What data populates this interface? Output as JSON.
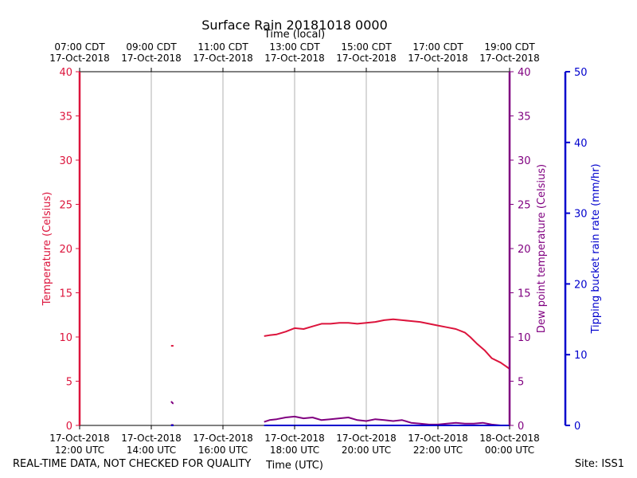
{
  "chart_data": {
    "type": "line",
    "title": "Surface Rain 20181018 0000",
    "top_axis_label": "Time (local)",
    "xlabel": "Time (UTC)",
    "ylabel_left": "Temperature (Celsius)",
    "ylabel_right": "Dew point temperature (Celsius)",
    "ylabel_far_right": "Tipping bucket rain rate (mm/hr)",
    "xlim_utc_hours": [
      12,
      24
    ],
    "ylim_temperature": [
      0,
      40
    ],
    "ylim_dewpoint": [
      0,
      40
    ],
    "ylim_rain": [
      0,
      50
    ],
    "temp_ticks": [
      "0",
      "5",
      "10",
      "15",
      "20",
      "25",
      "30",
      "35",
      "40"
    ],
    "rain_ticks": [
      "0",
      "10",
      "20",
      "30",
      "40",
      "50"
    ],
    "grid": true,
    "colors": {
      "temperature": "#dc143c",
      "dewpoint": "#800080",
      "rain": "#0000cd",
      "grid": "#b0b0b0"
    },
    "x_ticks_utc": [
      {
        "hour": 12,
        "line1": "17-Oct-2018",
        "line2": "12:00 UTC"
      },
      {
        "hour": 14,
        "line1": "17-Oct-2018",
        "line2": "14:00 UTC"
      },
      {
        "hour": 16,
        "line1": "17-Oct-2018",
        "line2": "16:00 UTC"
      },
      {
        "hour": 18,
        "line1": "17-Oct-2018",
        "line2": "18:00 UTC"
      },
      {
        "hour": 20,
        "line1": "17-Oct-2018",
        "line2": "20:00 UTC"
      },
      {
        "hour": 22,
        "line1": "17-Oct-2018",
        "line2": "22:00 UTC"
      },
      {
        "hour": 24,
        "line1": "18-Oct-2018",
        "line2": "00:00 UTC"
      }
    ],
    "x_ticks_local": [
      {
        "hour": 12,
        "line1": "07:00 CDT",
        "line2": "17-Oct-2018"
      },
      {
        "hour": 14,
        "line1": "09:00 CDT",
        "line2": "17-Oct-2018"
      },
      {
        "hour": 16,
        "line1": "11:00 CDT",
        "line2": "17-Oct-2018"
      },
      {
        "hour": 18,
        "line1": "13:00 CDT",
        "line2": "17-Oct-2018"
      },
      {
        "hour": 20,
        "line1": "15:00 CDT",
        "line2": "17-Oct-2018"
      },
      {
        "hour": 22,
        "line1": "17:00 CDT",
        "line2": "17-Oct-2018"
      },
      {
        "hour": 24,
        "line1": "19:00 CDT",
        "line2": "17-Oct-2018"
      }
    ],
    "series": [
      {
        "name": "Temperature",
        "axis": "temperature",
        "segments": [
          [
            [
              14.55,
              9.0
            ],
            [
              14.62,
              9.0
            ]
          ],
          [
            [
              17.15,
              10.1
            ],
            [
              17.3,
              10.2
            ],
            [
              17.5,
              10.3
            ],
            [
              17.75,
              10.6
            ],
            [
              18.0,
              11.0
            ],
            [
              18.25,
              10.9
            ],
            [
              18.5,
              11.2
            ],
            [
              18.75,
              11.5
            ],
            [
              19.0,
              11.5
            ],
            [
              19.25,
              11.6
            ],
            [
              19.5,
              11.6
            ],
            [
              19.75,
              11.5
            ],
            [
              20.0,
              11.6
            ],
            [
              20.25,
              11.7
            ],
            [
              20.5,
              11.9
            ],
            [
              20.75,
              12.0
            ],
            [
              21.0,
              11.9
            ],
            [
              21.25,
              11.8
            ],
            [
              21.5,
              11.7
            ],
            [
              21.75,
              11.5
            ],
            [
              22.0,
              11.3
            ],
            [
              22.25,
              11.1
            ],
            [
              22.5,
              10.9
            ],
            [
              22.75,
              10.5
            ],
            [
              22.9,
              10.0
            ],
            [
              23.1,
              9.2
            ],
            [
              23.3,
              8.5
            ],
            [
              23.5,
              7.6
            ],
            [
              23.75,
              7.1
            ],
            [
              24.0,
              6.4
            ]
          ]
        ]
      },
      {
        "name": "Dew point temperature",
        "axis": "dewpoint",
        "segments": [
          [
            [
              14.55,
              2.7
            ],
            [
              14.58,
              2.6
            ],
            [
              14.6,
              2.5
            ],
            [
              14.62,
              2.5
            ]
          ],
          [
            [
              14.55,
              0.05
            ],
            [
              14.62,
              0.05
            ]
          ],
          [
            [
              17.15,
              0.4
            ],
            [
              17.3,
              0.6
            ],
            [
              17.5,
              0.7
            ],
            [
              17.75,
              0.9
            ],
            [
              18.0,
              1.0
            ],
            [
              18.25,
              0.8
            ],
            [
              18.5,
              0.9
            ],
            [
              18.75,
              0.6
            ],
            [
              19.0,
              0.7
            ],
            [
              19.25,
              0.8
            ],
            [
              19.5,
              0.9
            ],
            [
              19.75,
              0.6
            ],
            [
              20.0,
              0.5
            ],
            [
              20.25,
              0.7
            ],
            [
              20.5,
              0.6
            ],
            [
              20.75,
              0.5
            ],
            [
              21.0,
              0.6
            ],
            [
              21.25,
              0.3
            ],
            [
              21.5,
              0.2
            ],
            [
              21.75,
              0.1
            ],
            [
              22.0,
              0.1
            ],
            [
              22.25,
              0.2
            ],
            [
              22.5,
              0.3
            ],
            [
              22.75,
              0.2
            ],
            [
              23.0,
              0.2
            ],
            [
              23.25,
              0.3
            ],
            [
              23.5,
              0.1
            ],
            [
              23.75,
              0.0
            ],
            [
              24.0,
              0.0
            ]
          ]
        ]
      },
      {
        "name": "Tipping bucket rain rate",
        "axis": "rain",
        "segments": [
          [
            [
              14.55,
              0.0
            ],
            [
              14.62,
              0.0
            ]
          ],
          [
            [
              17.15,
              0.0
            ],
            [
              24.0,
              0.0
            ]
          ]
        ]
      }
    ]
  },
  "footer": {
    "left": "REAL-TIME DATA, NOT CHECKED FOR QUALITY",
    "right": "Site: ISS1"
  }
}
